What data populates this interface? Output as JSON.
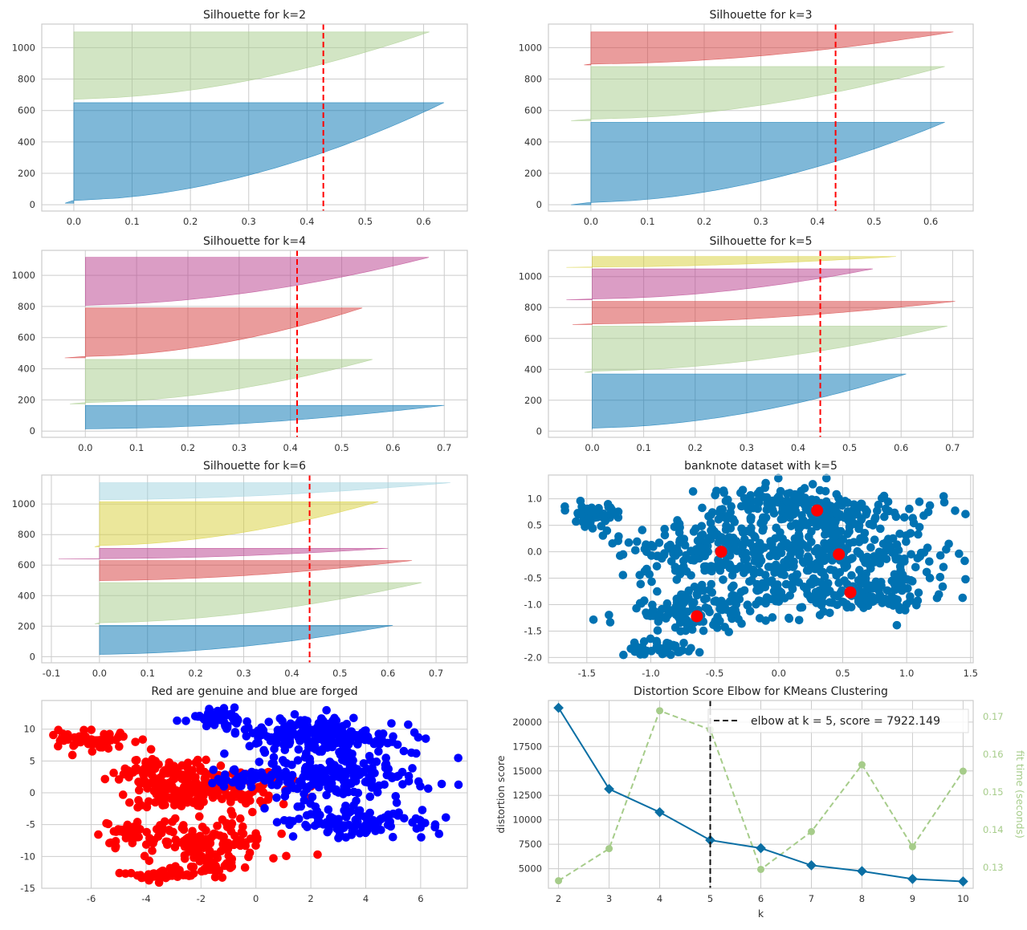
{
  "colors": {
    "cluster_palette": [
      "#0072b2",
      "#a6cc8a",
      "#d63a3a",
      "#b83c8c",
      "#d8d038",
      "#9fd3e0"
    ],
    "threshold": "#ff0000",
    "elbow_line": "#111111",
    "distortion": "#0b6fa4",
    "fit_time": "#a6cc8a",
    "scatter": "#0072b2",
    "centers": "#ff0000",
    "genuine": "#ff0000",
    "forged": "#0000ff"
  },
  "chart_data": [
    {
      "id": "sil2",
      "type": "area",
      "title": "Silhouette for k=2",
      "xlabel": "",
      "ylabel": "",
      "xlim": [
        -0.055,
        0.675
      ],
      "ylim": [
        -40,
        1150
      ],
      "grid": true,
      "xticks": [
        "0.0",
        "0.1",
        "0.2",
        "0.3",
        "0.4",
        "0.5",
        "0.6"
      ],
      "yticks": [
        "0",
        "200",
        "400",
        "600",
        "800",
        "1000"
      ],
      "threshold": 0.428,
      "clusters": [
        {
          "color_index": 0,
          "lower": 10,
          "upper": 650,
          "min": -0.015,
          "max": 0.635
        },
        {
          "color_index": 1,
          "lower": 660,
          "upper": 1100,
          "min": 0.0,
          "max": 0.61
        }
      ]
    },
    {
      "id": "sil3",
      "type": "area",
      "title": "Silhouette for k=3",
      "xlabel": "",
      "ylabel": "",
      "xlim": [
        -0.075,
        0.675
      ],
      "ylim": [
        -40,
        1150
      ],
      "grid": true,
      "xticks": [
        "0.0",
        "0.1",
        "0.2",
        "0.3",
        "0.4",
        "0.5",
        "0.6"
      ],
      "yticks": [
        "0",
        "200",
        "400",
        "600",
        "800",
        "1000"
      ],
      "threshold": 0.432,
      "clusters": [
        {
          "color_index": 0,
          "lower": 0,
          "upper": 525,
          "min": -0.035,
          "max": 0.625
        },
        {
          "color_index": 1,
          "lower": 535,
          "upper": 880,
          "min": -0.035,
          "max": 0.625
        },
        {
          "color_index": 2,
          "lower": 890,
          "upper": 1100,
          "min": -0.012,
          "max": 0.64
        }
      ]
    },
    {
      "id": "sil4",
      "type": "area",
      "title": "Silhouette for k=4",
      "xlabel": "",
      "ylabel": "",
      "xlim": [
        -0.085,
        0.745
      ],
      "ylim": [
        -40,
        1160
      ],
      "grid": true,
      "xticks": [
        "0.0",
        "0.1",
        "0.2",
        "0.3",
        "0.4",
        "0.5",
        "0.6",
        "0.7"
      ],
      "yticks": [
        "0",
        "200",
        "400",
        "600",
        "800",
        "1000"
      ],
      "threshold": 0.413,
      "clusters": [
        {
          "color_index": 0,
          "lower": 10,
          "upper": 165,
          "min": 0.0,
          "max": 0.7
        },
        {
          "color_index": 1,
          "lower": 175,
          "upper": 460,
          "min": -0.03,
          "max": 0.56
        },
        {
          "color_index": 2,
          "lower": 470,
          "upper": 790,
          "min": -0.04,
          "max": 0.54
        },
        {
          "color_index": 3,
          "lower": 800,
          "upper": 1115,
          "min": 0.0,
          "max": 0.67
        }
      ]
    },
    {
      "id": "sil5",
      "type": "area",
      "title": "Silhouette for k=5",
      "xlabel": "",
      "ylabel": "",
      "xlim": [
        -0.085,
        0.74
      ],
      "ylim": [
        -40,
        1170
      ],
      "grid": true,
      "xticks": [
        "0.0",
        "0.1",
        "0.2",
        "0.3",
        "0.4",
        "0.5",
        "0.6",
        "0.7"
      ],
      "yticks": [
        "0",
        "200",
        "400",
        "600",
        "800",
        "1000"
      ],
      "threshold": 0.443,
      "clusters": [
        {
          "color_index": 0,
          "lower": 10,
          "upper": 370,
          "min": 0.0,
          "max": 0.61
        },
        {
          "color_index": 1,
          "lower": 380,
          "upper": 680,
          "min": -0.015,
          "max": 0.69
        },
        {
          "color_index": 2,
          "lower": 690,
          "upper": 840,
          "min": -0.038,
          "max": 0.705
        },
        {
          "color_index": 3,
          "lower": 850,
          "upper": 1050,
          "min": -0.05,
          "max": 0.545
        },
        {
          "color_index": 4,
          "lower": 1060,
          "upper": 1130,
          "min": -0.05,
          "max": 0.59
        }
      ]
    },
    {
      "id": "sil6",
      "type": "area",
      "title": "Silhouette for k=6",
      "xlabel": "",
      "ylabel": "",
      "xlim": [
        -0.12,
        0.765
      ],
      "ylim": [
        -40,
        1190
      ],
      "grid": true,
      "xticks": [
        "-0.1",
        "0.0",
        "0.1",
        "0.2",
        "0.3",
        "0.4",
        "0.5",
        "0.6",
        "0.7"
      ],
      "yticks": [
        "0",
        "200",
        "400",
        "600",
        "800",
        "1000"
      ],
      "threshold": 0.437,
      "clusters": [
        {
          "color_index": 0,
          "lower": 10,
          "upper": 205,
          "min": 0.0,
          "max": 0.61
        },
        {
          "color_index": 1,
          "lower": 215,
          "upper": 485,
          "min": -0.01,
          "max": 0.67
        },
        {
          "color_index": 2,
          "lower": 495,
          "upper": 630,
          "min": 0.0,
          "max": 0.65
        },
        {
          "color_index": 3,
          "lower": 640,
          "upper": 710,
          "min": -0.085,
          "max": 0.6
        },
        {
          "color_index": 4,
          "lower": 720,
          "upper": 1015,
          "min": -0.01,
          "max": 0.58
        },
        {
          "color_index": 5,
          "lower": 1025,
          "upper": 1140,
          "min": 0.0,
          "max": 0.73
        }
      ]
    },
    {
      "id": "scatter_k5",
      "type": "scatter",
      "title": "banknote dataset with k=5",
      "xlabel": "",
      "ylabel": "",
      "xlim": [
        -1.8,
        1.52
      ],
      "ylim": [
        -2.1,
        1.45
      ],
      "grid": true,
      "xticks": [
        "-1.5",
        "-1.0",
        "-0.5",
        "0.0",
        "0.5",
        "1.0",
        "1.5"
      ],
      "yticks": [
        "-2.0",
        "-1.5",
        "-1.0",
        "-0.5",
        "0.0",
        "0.5",
        "1.0"
      ],
      "groups": [
        {
          "name": "",
          "cx": -1.48,
          "cy": 0.72,
          "sx": 0.12,
          "sy": 0.12,
          "n": 45
        },
        {
          "name": "",
          "cx": -0.55,
          "cy": 0.05,
          "sx": 0.35,
          "sy": 0.28,
          "n": 160
        },
        {
          "name": "",
          "cx": -0.1,
          "cy": 0.9,
          "sx": 0.25,
          "sy": 0.22,
          "n": 70
        },
        {
          "name": "",
          "cx": 0.45,
          "cy": 0.7,
          "sx": 0.4,
          "sy": 0.25,
          "n": 180
        },
        {
          "name": "",
          "cx": 0.45,
          "cy": -0.05,
          "sx": 0.45,
          "sy": 0.25,
          "n": 180
        },
        {
          "name": "",
          "cx": 0.6,
          "cy": -0.8,
          "sx": 0.35,
          "sy": 0.18,
          "n": 130
        },
        {
          "name": "",
          "cx": -0.65,
          "cy": -1.1,
          "sx": 0.35,
          "sy": 0.2,
          "n": 110
        },
        {
          "name": "",
          "cx": -0.95,
          "cy": -1.85,
          "sx": 0.15,
          "sy": 0.07,
          "n": 40
        },
        {
          "name": "",
          "cx": -0.2,
          "cy": -0.6,
          "sx": 0.4,
          "sy": 0.3,
          "n": 100
        }
      ],
      "centers": [
        [
          0.3,
          0.78
        ],
        [
          -0.45,
          0.0
        ],
        [
          0.47,
          -0.05
        ],
        [
          0.56,
          -0.77
        ],
        [
          -0.64,
          -1.22
        ]
      ]
    },
    {
      "id": "genuine_forged",
      "type": "scatter",
      "title": "Red are genuine and blue are forged",
      "xlabel": "",
      "ylabel": "",
      "xlim": [
        -7.8,
        7.7
      ],
      "ylim": [
        -15,
        14.5
      ],
      "grid": true,
      "xticks": [
        "-6",
        "-4",
        "-2",
        "0",
        "2",
        "4",
        "6"
      ],
      "yticks": [
        "-15",
        "-10",
        "-5",
        "0",
        "5",
        "10"
      ],
      "series": [
        {
          "name": "",
          "color_key": "genuine",
          "groups": [
            {
              "cx": -6.0,
              "cy": 8.2,
              "sx": 0.7,
              "sy": 0.9,
              "n": 50
            },
            {
              "cx": -3.5,
              "cy": 3.5,
              "sx": 0.8,
              "sy": 1.0,
              "n": 60
            },
            {
              "cx": -2.0,
              "cy": 0.5,
              "sx": 1.3,
              "sy": 1.6,
              "n": 200
            },
            {
              "cx": -1.5,
              "cy": -7.5,
              "sx": 1.2,
              "sy": 1.6,
              "n": 120
            },
            {
              "cx": -4.5,
              "cy": -6.5,
              "sx": 0.6,
              "sy": 1.0,
              "n": 40
            },
            {
              "cx": -3.5,
              "cy": -12.8,
              "sx": 0.6,
              "sy": 0.5,
              "n": 45
            },
            {
              "cx": -1.5,
              "cy": -11.5,
              "sx": 0.6,
              "sy": 1.0,
              "n": 30
            }
          ]
        },
        {
          "name": "",
          "color_key": "forged",
          "groups": [
            {
              "cx": -1.5,
              "cy": 11.5,
              "sx": 0.6,
              "sy": 0.8,
              "n": 50
            },
            {
              "cx": 2.5,
              "cy": 9.0,
              "sx": 1.5,
              "sy": 1.3,
              "n": 200
            },
            {
              "cx": 3.0,
              "cy": 2.5,
              "sx": 1.6,
              "sy": 2.2,
              "n": 200
            },
            {
              "cx": 3.5,
              "cy": -4.5,
              "sx": 1.4,
              "sy": 1.2,
              "n": 110
            },
            {
              "cx": -0.5,
              "cy": 2.0,
              "sx": 0.6,
              "sy": 0.8,
              "n": 35
            }
          ]
        }
      ]
    },
    {
      "id": "elbow",
      "type": "line",
      "title": "Distortion Score Elbow for KMeans Clustering",
      "xlabel": "k",
      "ylabel": "distortion score",
      "y2label": "fit time (seconds)",
      "x": [
        2,
        3,
        4,
        5,
        6,
        7,
        8,
        9,
        10
      ],
      "xlim": [
        1.8,
        10.2
      ],
      "ylim": [
        3000,
        22200
      ],
      "y2lim": [
        0.1245,
        0.1742
      ],
      "xticks": [
        "2",
        "3",
        "4",
        "5",
        "6",
        "7",
        "8",
        "9",
        "10"
      ],
      "yticks": [
        "5000",
        "7500",
        "10000",
        "12500",
        "15000",
        "17500",
        "20000"
      ],
      "y2ticks": [
        "0.13",
        "0.14",
        "0.15",
        "0.16",
        "0.17"
      ],
      "grid": true,
      "series": [
        {
          "name": "",
          "axis": "left",
          "values": [
            21450,
            13150,
            10780,
            7920,
            7100,
            5350,
            4750,
            3950,
            3700
          ]
        },
        {
          "name": "",
          "axis": "right",
          "values": [
            0.1265,
            0.135,
            0.1715,
            0.1665,
            0.1295,
            0.1395,
            0.1572,
            0.1355,
            0.1555
          ]
        }
      ],
      "elbow_k": 5,
      "legend": {
        "text": "elbow at k = 5, score = 7922.149",
        "position": "top-right"
      }
    }
  ]
}
